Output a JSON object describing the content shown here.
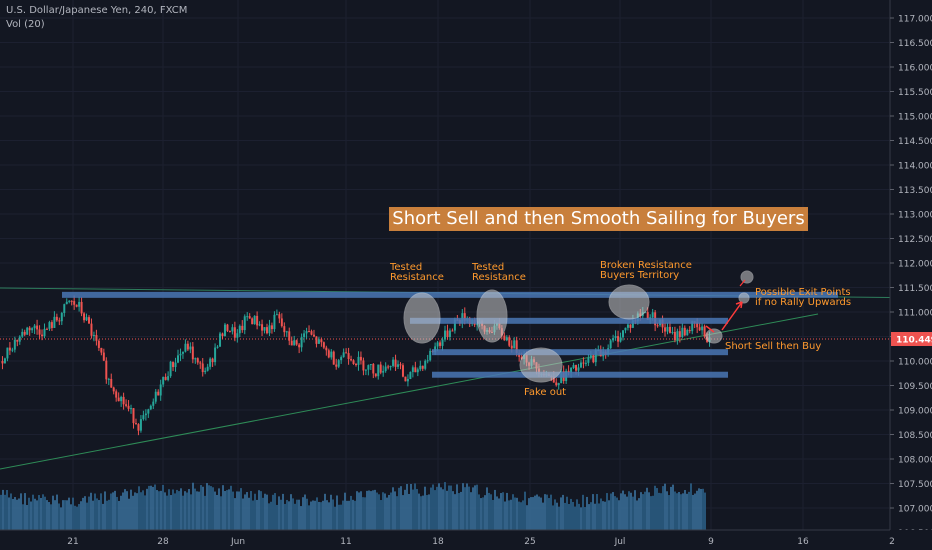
{
  "header": {
    "symbol_line": "U.S. Dollar/Japanese Yen, 240, FXCM",
    "volume_line": "Vol (20)"
  },
  "chart_data": {
    "type": "candlestick",
    "ylim": [
      106.25,
      117.2
    ],
    "y_ticks": [
      "117.000",
      "116.500",
      "116.000",
      "115.500",
      "115.000",
      "114.500",
      "114.000",
      "113.500",
      "113.000",
      "112.500",
      "112.000",
      "111.500",
      "111.000",
      "110.500",
      "110.000",
      "109.500",
      "109.000",
      "108.500",
      "108.000",
      "107.500",
      "107.000",
      "106.500"
    ],
    "x_ticks": [
      "21",
      "28",
      "Jun",
      "11",
      "18",
      "25",
      "Jul",
      "9",
      "16",
      "2"
    ],
    "last_price": "110.449",
    "colors": {
      "up": "#26a69a",
      "down": "#ef5350",
      "background": "#131722",
      "zone": "#4a77b4",
      "annotation": "#ff9a2e",
      "label_box": "#c87f3c"
    },
    "price_path": [
      [
        0,
        110.0
      ],
      [
        3,
        110.4
      ],
      [
        6,
        110.7
      ],
      [
        9,
        110.6
      ],
      [
        12,
        110.9
      ],
      [
        14,
        111.2
      ],
      [
        16,
        111.1
      ],
      [
        18,
        110.7
      ],
      [
        20,
        110.2
      ],
      [
        22,
        109.6
      ],
      [
        24,
        109.3
      ],
      [
        26,
        109.0
      ],
      [
        28,
        108.7
      ],
      [
        30,
        108.9
      ],
      [
        32,
        109.4
      ],
      [
        34,
        109.8
      ],
      [
        36,
        110.1
      ],
      [
        38,
        110.3
      ],
      [
        40,
        109.9
      ],
      [
        42,
        109.8
      ],
      [
        44,
        110.4
      ],
      [
        46,
        110.7
      ],
      [
        48,
        110.5
      ],
      [
        50,
        110.9
      ],
      [
        52,
        110.8
      ],
      [
        54,
        110.6
      ],
      [
        56,
        110.9
      ],
      [
        58,
        110.5
      ],
      [
        60,
        110.3
      ],
      [
        62,
        110.6
      ],
      [
        64,
        110.4
      ],
      [
        66,
        110.2
      ],
      [
        68,
        110.0
      ],
      [
        70,
        110.2
      ],
      [
        72,
        110.0
      ],
      [
        74,
        109.9
      ],
      [
        76,
        109.8
      ],
      [
        78,
        109.9
      ],
      [
        80,
        110.0
      ],
      [
        82,
        109.6
      ],
      [
        84,
        109.8
      ],
      [
        86,
        110.0
      ],
      [
        88,
        110.3
      ],
      [
        90,
        110.5
      ],
      [
        92,
        110.8
      ],
      [
        94,
        110.9
      ],
      [
        96,
        110.8
      ],
      [
        98,
        110.6
      ],
      [
        100,
        110.7
      ],
      [
        102,
        110.5
      ],
      [
        104,
        110.3
      ],
      [
        106,
        110.1
      ],
      [
        108,
        109.9
      ],
      [
        110,
        109.8
      ],
      [
        112,
        109.6
      ],
      [
        114,
        109.7
      ],
      [
        116,
        109.8
      ],
      [
        118,
        109.9
      ],
      [
        120,
        110.1
      ],
      [
        122,
        110.2
      ],
      [
        124,
        110.4
      ],
      [
        126,
        110.6
      ],
      [
        128,
        110.8
      ],
      [
        130,
        111.0
      ],
      [
        132,
        110.9
      ],
      [
        134,
        110.7
      ],
      [
        136,
        110.5
      ],
      [
        138,
        110.6
      ],
      [
        140,
        110.7
      ],
      [
        142,
        110.6
      ],
      [
        144,
        110.4
      ]
    ],
    "zones": [
      {
        "from": 0.0,
        "to": 111.35
      },
      {
        "from": 0.44,
        "to": 110.82
      },
      {
        "from": 0.47,
        "to": 110.18
      },
      {
        "from": 0.455,
        "to": 109.72
      }
    ],
    "title": "Short Sell and then Smooth Sailing for Buyers",
    "annotations": [
      {
        "text": "Tested\nResistance"
      },
      {
        "text": "Tested\nResistance"
      },
      {
        "text": "Broken Resistance\nBuyers Territory"
      },
      {
        "text": "Fake out"
      },
      {
        "text": "Possible Exit Points\nif no Rally Upwards"
      },
      {
        "text": "Short Sell then Buy"
      }
    ]
  }
}
